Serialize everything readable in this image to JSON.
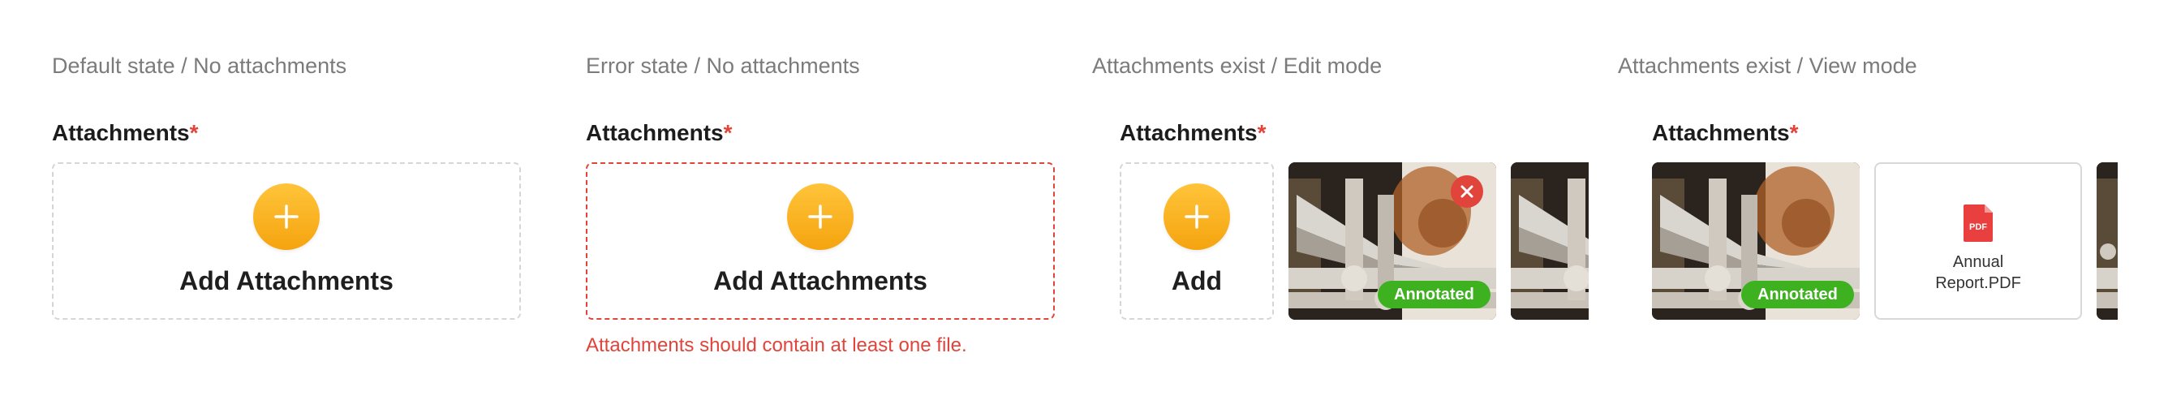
{
  "states": [
    {
      "title": "Default state / No attachments"
    },
    {
      "title": "Error state / No attachments"
    },
    {
      "title": "Attachments exist / Edit mode"
    },
    {
      "title": "Attachments exist / View mode"
    }
  ],
  "field": {
    "label": "Attachments",
    "required_mark": "*"
  },
  "dropzone": {
    "add_attachments_label": "Add Attachments",
    "add_label": "Add",
    "plus_icon": "plus-icon"
  },
  "error": {
    "message": "Attachments should contain at least one file."
  },
  "attachments": {
    "annotated_badge": "Annotated",
    "file_name": "Annual Report.PDF",
    "file_type_icon": "PDF"
  },
  "colors": {
    "accent": "#f7aa14",
    "error": "#e0443a",
    "badge": "#3db11f",
    "title_gray": "#7b7b7b"
  }
}
